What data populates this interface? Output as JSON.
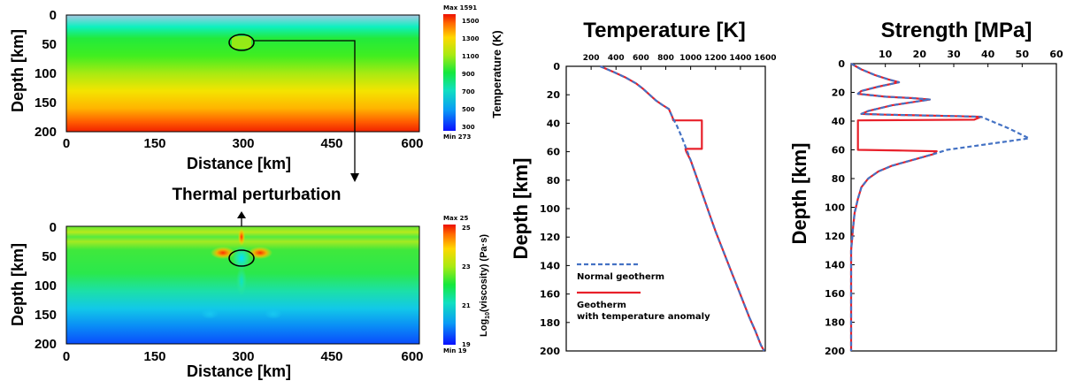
{
  "chart_data": [
    {
      "type": "heatmap",
      "xlabel": "Distance [km]",
      "ylabel": "Depth [km]",
      "xlim": [
        0,
        600
      ],
      "ylim": [
        200,
        0
      ],
      "x_ticks": [
        "0",
        "150",
        "300",
        "450",
        "600"
      ],
      "y_ticks": [
        "0",
        "50",
        "100",
        "150",
        "200"
      ],
      "colorbar": {
        "label": "Temperature (K)",
        "max_label": "Max 1591",
        "min_label": "Min 273",
        "min": 273,
        "max": 1591,
        "ticks": [
          "1500",
          "1300",
          "1100",
          "900",
          "700",
          "500",
          "300"
        ]
      },
      "anomaly": {
        "x": 300,
        "y": 50,
        "rx": 25,
        "ry": 12
      }
    },
    {
      "type": "heatmap",
      "xlabel": "Distance [km]",
      "ylabel": "Depth [km]",
      "xlim": [
        0,
        600
      ],
      "ylim": [
        200,
        0
      ],
      "x_ticks": [
        "0",
        "150",
        "300",
        "450",
        "600"
      ],
      "y_ticks": [
        "0",
        "50",
        "100",
        "150",
        "200"
      ],
      "colorbar": {
        "label_prefix": "Log",
        "label_sub": "10",
        "label_suffix": "(viscosity) (Pa·s)",
        "max_label": "Max 25",
        "min_label": "Min 19",
        "min": 19,
        "max": 25,
        "ticks": [
          "25",
          "23",
          "21",
          "19"
        ]
      },
      "anomaly": {
        "x": 300,
        "y": 50,
        "rx": 25,
        "ry": 12
      }
    },
    {
      "type": "line",
      "title": "Temperature [K]",
      "ylabel": "Depth [km]",
      "xlim": [
        0,
        1600
      ],
      "ylim": [
        200,
        0
      ],
      "x_ticks": [
        200,
        400,
        600,
        800,
        1000,
        1200,
        1400,
        1600
      ],
      "y_ticks": [
        0,
        20,
        40,
        60,
        80,
        100,
        120,
        140,
        160,
        180,
        200
      ],
      "series": [
        {
          "name": "Normal geotherm",
          "color": "#4472c4",
          "dashed": true,
          "points": [
            [
              273,
              0
            ],
            [
              380,
              4
            ],
            [
              480,
              8
            ],
            [
              560,
              12
            ],
            [
              620,
              16
            ],
            [
              670,
              20
            ],
            [
              720,
              24
            ],
            [
              770,
              27
            ],
            [
              825,
              30
            ],
            [
              855,
              36
            ],
            [
              890,
              42
            ],
            [
              930,
              50
            ],
            [
              965,
              58
            ],
            [
              1000,
              66
            ],
            [
              1040,
              76
            ],
            [
              1080,
              86
            ],
            [
              1120,
              96
            ],
            [
              1160,
              106
            ],
            [
              1200,
              116
            ],
            [
              1245,
              126
            ],
            [
              1290,
              136
            ],
            [
              1335,
              146
            ],
            [
              1380,
              156
            ],
            [
              1425,
              166
            ],
            [
              1470,
              176
            ],
            [
              1520,
              186
            ],
            [
              1565,
              196
            ],
            [
              1591,
              200
            ]
          ]
        },
        {
          "name": "Geotherm with temperature anomaly",
          "color": "#e8202a",
          "dashed": false,
          "points": [
            [
              273,
              0
            ],
            [
              380,
              4
            ],
            [
              480,
              8
            ],
            [
              560,
              12
            ],
            [
              620,
              16
            ],
            [
              670,
              20
            ],
            [
              720,
              24
            ],
            [
              770,
              27
            ],
            [
              825,
              30
            ],
            [
              855,
              36
            ],
            [
              860,
              38
            ],
            [
              1090,
              38
            ],
            [
              1090,
              58
            ],
            [
              958,
              58
            ],
            [
              965,
              60
            ],
            [
              1000,
              66
            ],
            [
              1040,
              76
            ],
            [
              1080,
              86
            ],
            [
              1120,
              96
            ],
            [
              1160,
              106
            ],
            [
              1200,
              116
            ],
            [
              1245,
              126
            ],
            [
              1290,
              136
            ],
            [
              1335,
              146
            ],
            [
              1380,
              156
            ],
            [
              1425,
              166
            ],
            [
              1470,
              176
            ],
            [
              1520,
              186
            ],
            [
              1565,
              196
            ],
            [
              1591,
              200
            ]
          ]
        }
      ],
      "legend": {
        "normal": "Normal geotherm",
        "anomaly_line1": "Geotherm",
        "anomaly_line2": "with temperature anomaly"
      }
    },
    {
      "type": "line",
      "title": "Strength [MPa]",
      "ylabel": "Depth [km]",
      "xlim": [
        0,
        60
      ],
      "ylim": [
        200,
        0
      ],
      "x_ticks": [
        10,
        20,
        30,
        40,
        50,
        60
      ],
      "y_ticks": [
        0,
        20,
        40,
        60,
        80,
        100,
        120,
        140,
        160,
        180,
        200
      ],
      "series": [
        {
          "name": "Normal geotherm",
          "color": "#4472c4",
          "dashed": true,
          "points": [
            [
              0,
              0
            ],
            [
              3,
              4
            ],
            [
              7,
              8
            ],
            [
              11,
              11
            ],
            [
              14,
              13
            ],
            [
              8,
              16
            ],
            [
              3,
              19
            ],
            [
              2,
              21
            ],
            [
              10,
              23
            ],
            [
              18,
              24
            ],
            [
              23,
              25
            ],
            [
              12,
              29
            ],
            [
              5,
              33
            ],
            [
              3,
              35
            ],
            [
              10,
              35.5
            ],
            [
              20,
              36
            ],
            [
              30,
              36.5
            ],
            [
              38,
              37
            ],
            [
              42,
              41
            ],
            [
              46,
              45
            ],
            [
              52,
              52
            ],
            [
              40,
              56
            ],
            [
              28,
              60
            ],
            [
              24,
              63
            ],
            [
              18,
              67
            ],
            [
              12,
              71
            ],
            [
              8,
              75
            ],
            [
              5,
              80
            ],
            [
              3,
              86
            ],
            [
              2,
              94
            ],
            [
              1,
              104
            ],
            [
              0.5,
              116
            ],
            [
              0,
              130
            ],
            [
              0,
              200
            ]
          ]
        },
        {
          "name": "Geotherm with temperature anomaly",
          "color": "#e8202a",
          "dashed": false,
          "points": [
            [
              0,
              0
            ],
            [
              3,
              4
            ],
            [
              7,
              8
            ],
            [
              11,
              11
            ],
            [
              14,
              13
            ],
            [
              8,
              16
            ],
            [
              3,
              19
            ],
            [
              2,
              21
            ],
            [
              10,
              23
            ],
            [
              18,
              24
            ],
            [
              23,
              25
            ],
            [
              12,
              29
            ],
            [
              5,
              33
            ],
            [
              3,
              35
            ],
            [
              10,
              35.5
            ],
            [
              20,
              36
            ],
            [
              30,
              36.5
            ],
            [
              38,
              37
            ],
            [
              36,
              39
            ],
            [
              2,
              39.5
            ],
            [
              2,
              60
            ],
            [
              15,
              60.5
            ],
            [
              25,
              61
            ],
            [
              24,
              63
            ],
            [
              18,
              67
            ],
            [
              12,
              71
            ],
            [
              8,
              75
            ],
            [
              5,
              80
            ],
            [
              3,
              86
            ],
            [
              2,
              94
            ],
            [
              1,
              104
            ],
            [
              0.5,
              116
            ],
            [
              0,
              130
            ],
            [
              0,
              200
            ]
          ]
        }
      ]
    }
  ],
  "annotation": {
    "thermal_perturbation": "Thermal perturbation"
  }
}
